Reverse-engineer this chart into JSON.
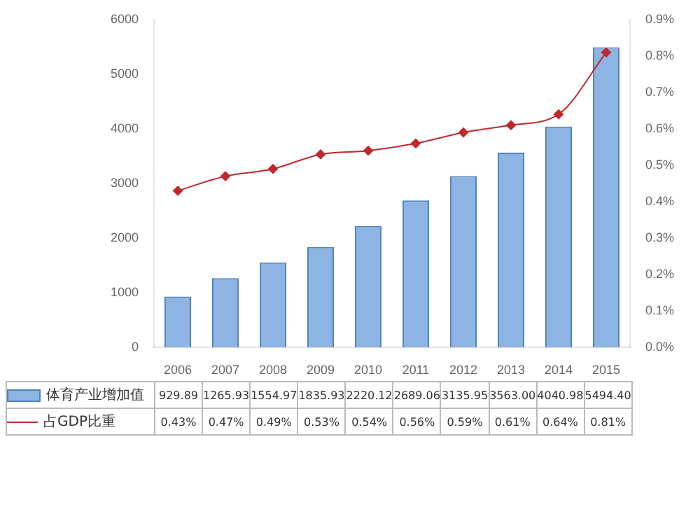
{
  "chart_data": {
    "type": "bar",
    "categories": [
      "2006",
      "2007",
      "2008",
      "2009",
      "2010",
      "2011",
      "2012",
      "2013",
      "2014",
      "2015"
    ],
    "series": [
      {
        "name": "体育产业增加值",
        "color": "#8db4e2",
        "values": [
          929.89,
          1265.93,
          1554.97,
          1835.93,
          2220.12,
          2689.06,
          3135.95,
          3563.0,
          4040.98,
          5494.4
        ],
        "value_labels": [
          "929.89",
          "1265.93",
          "1554.97",
          "1835.93",
          "2220.12",
          "2689.06",
          "3135.95",
          "3563.00",
          "4040.98",
          "5494.40"
        ]
      },
      {
        "name": "占GDP比重",
        "type": "line",
        "axis": "y2",
        "color": "#c0282d",
        "marker": "diamond",
        "values": [
          0.43,
          0.47,
          0.49,
          0.53,
          0.54,
          0.56,
          0.59,
          0.61,
          0.64,
          0.81
        ],
        "value_labels": [
          "0.43%",
          "0.47%",
          "0.49%",
          "0.53%",
          "0.54%",
          "0.56%",
          "0.59%",
          "0.61%",
          "0.64%",
          "0.81%"
        ]
      }
    ],
    "ylim": [
      0,
      6000
    ],
    "yticks": [
      0,
      1000,
      2000,
      3000,
      4000,
      5000,
      6000
    ],
    "y2lim": [
      0,
      0.9
    ],
    "y2ticks": [
      {
        "value": 0,
        "label": "0.0%"
      },
      {
        "value": 0.1,
        "label": "0.1%"
      },
      {
        "value": 0.2,
        "label": "0.2%"
      },
      {
        "value": 0.3,
        "label": "0.3%"
      },
      {
        "value": 0.4,
        "label": "0.4%"
      },
      {
        "value": 0.5,
        "label": "0.5%"
      },
      {
        "value": 0.6,
        "label": "0.6%"
      },
      {
        "value": 0.7,
        "label": "0.7%"
      },
      {
        "value": 0.8,
        "label": "0.8%"
      },
      {
        "value": 0.9,
        "label": "0.9%"
      }
    ],
    "grid": false,
    "legend": "bottom"
  }
}
